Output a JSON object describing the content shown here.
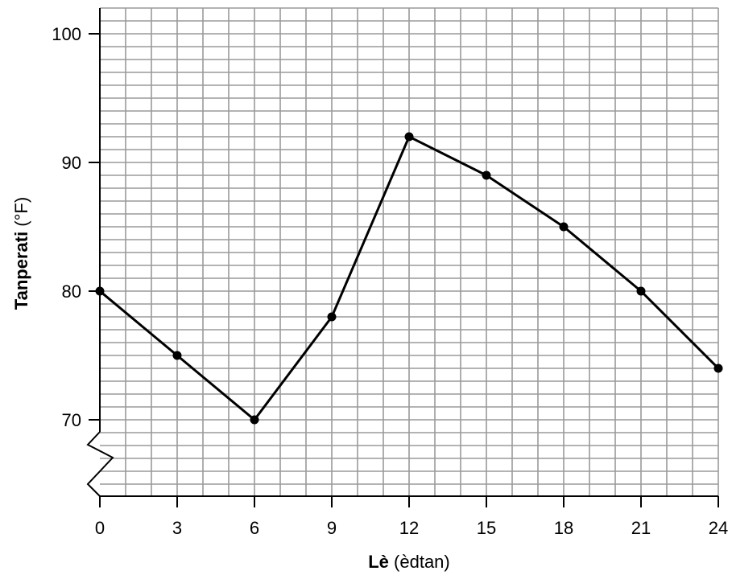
{
  "chart_data": {
    "type": "line",
    "title": "",
    "xlabel_bold": "Lè",
    "xlabel_rest": " (èdtan)",
    "ylabel_bold": "Tanperati",
    "ylabel_rest": " (°F)",
    "x": [
      0,
      3,
      6,
      9,
      12,
      15,
      18,
      21,
      24
    ],
    "y": [
      80,
      75,
      70,
      78,
      92,
      89,
      85,
      80,
      74
    ],
    "xlim": [
      0,
      24
    ],
    "ylim": [
      64,
      102
    ],
    "x_ticks": [
      0,
      3,
      6,
      9,
      12,
      15,
      18,
      21,
      24
    ],
    "y_ticks": [
      70,
      80,
      90,
      100
    ],
    "axis_break": "y",
    "grid": true,
    "colors": {
      "line": "#000000",
      "grid": "#9a9a9a",
      "axis": "#000000"
    }
  }
}
